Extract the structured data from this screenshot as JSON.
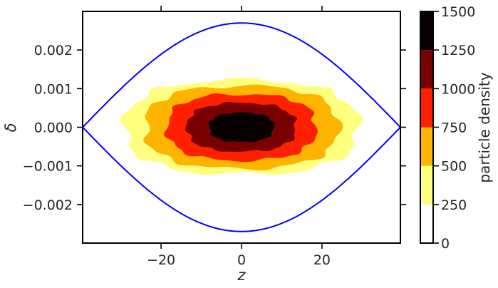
{
  "chart_data": {
    "type": "contour",
    "xlabel": "z",
    "ylabel": "δ",
    "xlim": [
      -39.5,
      39.5
    ],
    "ylim": [
      -0.003,
      0.003
    ],
    "xticks": [
      {
        "value": -20,
        "label": "−20"
      },
      {
        "value": 0,
        "label": "0"
      },
      {
        "value": 20,
        "label": "20"
      }
    ],
    "yticks": [
      {
        "value": 0.002,
        "label": "0.002"
      },
      {
        "value": 0.001,
        "label": "0.001"
      },
      {
        "value": 0.0,
        "label": "0.000"
      },
      {
        "value": -0.001,
        "label": "−0.001"
      },
      {
        "value": -0.002,
        "label": "−0.002"
      }
    ],
    "grid": false,
    "separatrix": {
      "color": "#0000ff",
      "z_half_width": 39.5,
      "delta_max": 0.0027
    },
    "density_levels": [
      {
        "min": 0,
        "max": 250,
        "color": "#ffffff"
      },
      {
        "min": 250,
        "max": 500,
        "color": "#ffff80"
      },
      {
        "min": 500,
        "max": 750,
        "color": "#ffb400"
      },
      {
        "min": 750,
        "max": 1000,
        "color": "#ff2000"
      },
      {
        "min": 1000,
        "max": 1250,
        "color": "#780000"
      },
      {
        "min": 1250,
        "max": 1500,
        "color": "#080000"
      }
    ],
    "density_contours": [
      {
        "level": 250,
        "z_half": 29.0,
        "delta_half": 0.00122,
        "color": "#ffff80"
      },
      {
        "level": 500,
        "z_half": 24.0,
        "delta_half": 0.00107,
        "color": "#ffb400"
      },
      {
        "level": 750,
        "z_half": 18.5,
        "delta_half": 0.00086,
        "color": "#ff2000"
      },
      {
        "level": 1000,
        "z_half": 13.5,
        "delta_half": 0.00063,
        "color": "#780000"
      },
      {
        "level": 1250,
        "z_half": 8.0,
        "delta_half": 0.00038,
        "color": "#080000"
      }
    ],
    "colorbar": {
      "label": "particle density",
      "ticks": [
        {
          "value": 0,
          "label": "0"
        },
        {
          "value": 250,
          "label": "250"
        },
        {
          "value": 500,
          "label": "500"
        },
        {
          "value": 750,
          "label": "750"
        },
        {
          "value": 1000,
          "label": "1000"
        },
        {
          "value": 1250,
          "label": "1250"
        },
        {
          "value": 1500,
          "label": "1500"
        }
      ],
      "range": [
        0,
        1500
      ]
    }
  }
}
